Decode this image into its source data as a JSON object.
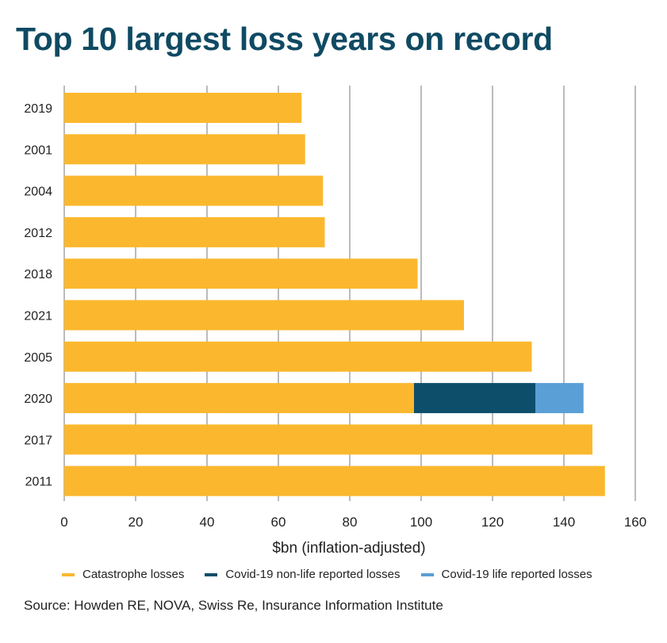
{
  "colors": {
    "catastrophe": "#fbb82e",
    "non_life": "#0d4e6b",
    "life": "#5a9fd6",
    "title": "#0f4a63",
    "grid": "#777777"
  },
  "chart_data": {
    "type": "bar",
    "orientation": "horizontal",
    "stacked": true,
    "title": "Top 10 largest loss years on record",
    "xlabel": "$bn (inflation-adjusted)",
    "ylabel": "",
    "xlim": [
      0,
      160
    ],
    "xticks": [
      0,
      20,
      40,
      60,
      80,
      100,
      120,
      140,
      160
    ],
    "grid": "vertical",
    "legend_position": "bottom",
    "categories": [
      "2019",
      "2001",
      "2004",
      "2012",
      "2018",
      "2021",
      "2005",
      "2020",
      "2017",
      "2011"
    ],
    "series": [
      {
        "name": "Catastrophe losses",
        "color_key": "catastrophe",
        "values": [
          66.5,
          67.5,
          72.5,
          73,
          99,
          112,
          131,
          98,
          148,
          151.5
        ]
      },
      {
        "name": "Covid-19 non-life reported losses",
        "color_key": "non_life",
        "values": [
          0,
          0,
          0,
          0,
          0,
          0,
          0,
          34,
          0,
          0
        ]
      },
      {
        "name": "Covid-19 life reported losses",
        "color_key": "life",
        "values": [
          0,
          0,
          0,
          0,
          0,
          0,
          0,
          13.5,
          0,
          0
        ]
      }
    ],
    "source": "Source: Howden RE, NOVA, Swiss Re, Insurance Information Institute"
  }
}
